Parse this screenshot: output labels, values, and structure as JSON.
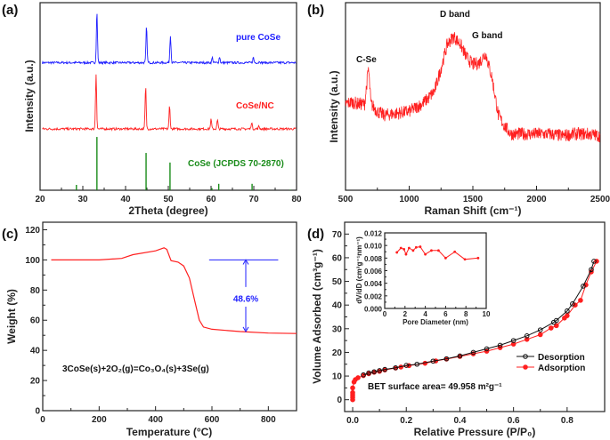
{
  "chart_data": [
    {
      "panel_label": "(a)",
      "type": "line",
      "xlabel": "2Theta (degree)",
      "ylabel": "Intensity (a.u.)",
      "xlim": [
        20,
        80
      ],
      "xticks": [
        20,
        30,
        40,
        50,
        60,
        70,
        80
      ],
      "series": [
        {
          "name": "pure CoSe",
          "color": "#1f1fff",
          "peaks_2theta": [
            33.3,
            44.9,
            50.5,
            60.3,
            62.0,
            69.9,
            71.4
          ],
          "relative_intensity": [
            1.0,
            0.7,
            0.53,
            0.1,
            0.11,
            0.1,
            0.03
          ]
        },
        {
          "name": "CoSe/NC",
          "color": "#ff1f1f",
          "peaks_2theta": [
            33.1,
            44.7,
            50.3,
            60.0,
            61.5,
            69.5,
            71.2
          ],
          "relative_intensity": [
            1.0,
            0.77,
            0.42,
            0.17,
            0.16,
            0.12,
            0.05
          ]
        },
        {
          "name": "CoSe (JCPDS 70-2870)",
          "color": "#1a8c1a",
          "type": "stick",
          "peaks_2theta": [
            28.5,
            33.3,
            44.8,
            50.4,
            60.2,
            61.8,
            69.6,
            71.3,
            78.5
          ],
          "relative_intensity": [
            0.1,
            1.0,
            0.7,
            0.52,
            0.04,
            0.12,
            0.12,
            0.01,
            0.01
          ]
        }
      ]
    },
    {
      "panel_label": "(b)",
      "type": "line",
      "xlabel": "Raman Shift (cm⁻¹)",
      "ylabel": "Intensity (a.u.)",
      "xlim": [
        500,
        2500
      ],
      "xticks": [
        500,
        1000,
        1500,
        2000,
        2500
      ],
      "color": "#ff1f1f",
      "x": [
        500,
        550,
        600,
        650,
        680,
        700,
        750,
        800,
        900,
        1000,
        1100,
        1150,
        1200,
        1250,
        1300,
        1350,
        1400,
        1450,
        1500,
        1550,
        1600,
        1650,
        1700,
        1750,
        1800,
        1900,
        2000,
        2100,
        2200,
        2300,
        2400,
        2500
      ],
      "y": [
        0.46,
        0.47,
        0.46,
        0.46,
        0.65,
        0.46,
        0.42,
        0.4,
        0.41,
        0.42,
        0.46,
        0.49,
        0.53,
        0.65,
        0.78,
        0.82,
        0.78,
        0.71,
        0.67,
        0.68,
        0.73,
        0.6,
        0.4,
        0.34,
        0.3,
        0.3,
        0.3,
        0.3,
        0.29,
        0.3,
        0.3,
        0.29
      ],
      "annotations": [
        "C-Se",
        "D band",
        "G band"
      ]
    },
    {
      "panel_label": "(c)",
      "type": "line",
      "xlabel": "Temperature (°C)",
      "ylabel": "Weight (%)",
      "xlim": [
        0,
        900
      ],
      "ylim": [
        0,
        125
      ],
      "xticks": [
        0,
        200,
        400,
        600,
        800
      ],
      "yticks": [
        0,
        20,
        40,
        60,
        80,
        100,
        120
      ],
      "color": "#ff1f1f",
      "x": [
        30,
        100,
        200,
        280,
        320,
        400,
        430,
        440,
        455,
        480,
        500,
        520,
        540,
        555,
        570,
        600,
        700,
        800,
        900
      ],
      "y": [
        100,
        100,
        100,
        101,
        103.5,
        106,
        108,
        107,
        99.5,
        98.5,
        96,
        88,
        72,
        60,
        55.5,
        54,
        52.5,
        51.5,
        51.2
      ],
      "annotation_value": "48.6%",
      "annotation_color": "#1f1fff",
      "equation": "3CoSe(s)+2O₂(g)=Co₃O₄(s)+3Se(g)"
    },
    {
      "panel_label": "(d)",
      "type": "line",
      "xlabel": "Relative Pressure (P/P₀)",
      "ylabel": "Volume Adsorbed (cm³g⁻¹)",
      "xlim": [
        -0.03,
        0.94
      ],
      "ylim": [
        -5,
        75
      ],
      "xticks": [
        0.0,
        0.2,
        0.4,
        0.6,
        0.8
      ],
      "yticks": [
        0,
        10,
        20,
        30,
        40,
        50,
        60,
        70
      ],
      "legend_position": "right",
      "bet_text": "BET surface area= 49.958 m²g⁻¹",
      "series": [
        {
          "name": "Desorption",
          "color": "#111111",
          "x": [
            0.9,
            0.89,
            0.86,
            0.82,
            0.8,
            0.76,
            0.75,
            0.7,
            0.65,
            0.6,
            0.55,
            0.5,
            0.45,
            0.4,
            0.35,
            0.3,
            0.24,
            0.2,
            0.16,
            0.12,
            0.1,
            0.08,
            0.06,
            0.04
          ],
          "y": [
            58.5,
            55,
            48,
            40.5,
            37.5,
            33.5,
            32.7,
            29.5,
            27,
            25,
            23,
            21.5,
            20,
            18.5,
            17.3,
            16.3,
            15,
            14.5,
            13.5,
            12.8,
            12.3,
            11.8,
            11.3,
            10.5
          ]
        },
        {
          "name": "Adsorption",
          "color": "#ff1f1f",
          "x": [
            0.0,
            0.0,
            0.0,
            0.0,
            0.0,
            0.005,
            0.01,
            0.02,
            0.04,
            0.06,
            0.08,
            0.1,
            0.12,
            0.16,
            0.18,
            0.21,
            0.27,
            0.31,
            0.35,
            0.4,
            0.45,
            0.5,
            0.55,
            0.6,
            0.65,
            0.7,
            0.74,
            0.76,
            0.79,
            0.8,
            0.83,
            0.85,
            0.87,
            0.89,
            0.91
          ],
          "y": [
            0,
            1,
            2,
            3,
            5,
            7.5,
            8.5,
            9.3,
            10.2,
            11,
            11.6,
            12,
            12.6,
            13.4,
            13.8,
            14.4,
            15.4,
            16.4,
            17.2,
            18.3,
            19.4,
            20.5,
            22,
            23.5,
            25.5,
            27.5,
            30.3,
            31.3,
            34.5,
            35.5,
            40,
            42,
            48.5,
            54,
            58.5
          ]
        }
      ],
      "inset": {
        "type": "line",
        "xlabel": "Pore Diameter (nm)",
        "ylabel": "dV/dD (cm³g⁻¹nm⁻¹)",
        "xlim": [
          0,
          10
        ],
        "ylim": [
          0,
          0.012
        ],
        "xticks": [
          0,
          2,
          4,
          6,
          8,
          10
        ],
        "yticks": [
          "0.000",
          "0.002",
          "0.004",
          "0.006",
          "0.008",
          "0.010",
          "0.012"
        ],
        "color": "#ff1f1f",
        "x": [
          1.2,
          1.6,
          1.9,
          2.1,
          2.4,
          2.8,
          3.1,
          3.5,
          4.0,
          4.6,
          5.3,
          6.0,
          6.9,
          7.9,
          9.2
        ],
        "y": [
          0.0089,
          0.0096,
          0.0094,
          0.0086,
          0.0096,
          0.0092,
          0.0097,
          0.0098,
          0.0086,
          0.0092,
          0.0092,
          0.008,
          0.009,
          0.0078,
          0.008
        ]
      }
    }
  ]
}
